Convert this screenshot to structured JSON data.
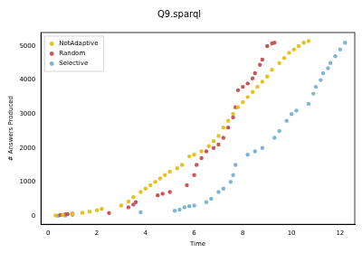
{
  "chart_data": {
    "type": "scatter",
    "title": "Q9.sparql",
    "x_label": "Time",
    "y_label": "# Answers Produced",
    "xlim": [
      -0.3,
      12.6
    ],
    "ylim": [
      -250,
      5400
    ],
    "xticks": [
      0,
      2,
      4,
      6,
      8,
      10,
      12
    ],
    "yticks": [
      0,
      1000,
      2000,
      3000,
      4000,
      5000
    ],
    "grid": false,
    "legend": "upper left",
    "marker": "circle",
    "series": [
      {
        "name": "NotAdaptive",
        "color": "#e5c21c",
        "x": [
          0.3,
          0.6,
          1.0,
          1.4,
          1.7,
          2.0,
          2.2,
          3.0,
          3.3,
          3.5,
          3.8,
          4.0,
          4.2,
          4.4,
          4.6,
          4.8,
          5.0,
          5.3,
          5.5,
          5.8,
          6.0,
          6.3,
          6.6,
          6.8,
          7.0,
          7.2,
          7.4,
          7.6,
          7.8,
          8.0,
          8.2,
          8.4,
          8.6,
          8.8,
          9.0,
          9.2,
          9.5,
          9.7,
          9.9,
          10.1,
          10.3,
          10.5,
          10.7
        ],
        "values": [
          10,
          20,
          50,
          90,
          120,
          160,
          200,
          300,
          420,
          550,
          700,
          800,
          900,
          1000,
          1100,
          1200,
          1300,
          1400,
          1500,
          1750,
          1800,
          1900,
          2050,
          2200,
          2350,
          2600,
          2800,
          3000,
          3200,
          3350,
          3500,
          3650,
          3800,
          3950,
          4100,
          4300,
          4500,
          4650,
          4800,
          4900,
          5000,
          5100,
          5150
        ]
      },
      {
        "name": "Random",
        "color": "#c9565a",
        "x": [
          0.5,
          0.7,
          0.8,
          1.0,
          2.5,
          3.3,
          3.5,
          3.6,
          4.5,
          4.7,
          5.0,
          5.7,
          6.0,
          6.1,
          6.3,
          6.5,
          6.8,
          7.0,
          7.2,
          7.4,
          7.6,
          7.7,
          7.8,
          8.0,
          8.2,
          8.4,
          8.5,
          8.7,
          8.8,
          9.0,
          9.2,
          9.3
        ],
        "values": [
          20,
          40,
          50,
          60,
          80,
          250,
          330,
          400,
          600,
          650,
          700,
          900,
          1200,
          1500,
          1700,
          1900,
          2000,
          2100,
          2300,
          2600,
          2900,
          3200,
          3700,
          3800,
          3900,
          4050,
          4200,
          4450,
          4600,
          5000,
          5080,
          5100
        ]
      },
      {
        "name": "Selective",
        "color": "#7eb5d5",
        "x": [
          0.4,
          0.7,
          1.0,
          3.8,
          5.2,
          5.4,
          5.6,
          5.8,
          6.0,
          6.5,
          6.7,
          7.0,
          7.2,
          7.5,
          7.6,
          7.7,
          8.2,
          8.5,
          8.8,
          9.3,
          9.5,
          9.8,
          10.0,
          10.2,
          10.7,
          10.9,
          11.0,
          11.2,
          11.3,
          11.5,
          11.6,
          11.8,
          12.0,
          12.2
        ],
        "values": [
          0,
          10,
          30,
          100,
          150,
          180,
          250,
          280,
          300,
          400,
          500,
          700,
          800,
          1000,
          1200,
          1500,
          1800,
          1900,
          2000,
          2300,
          2500,
          2800,
          3000,
          3100,
          3300,
          3600,
          3800,
          4000,
          4200,
          4350,
          4500,
          4700,
          4900,
          5100
        ]
      }
    ]
  }
}
